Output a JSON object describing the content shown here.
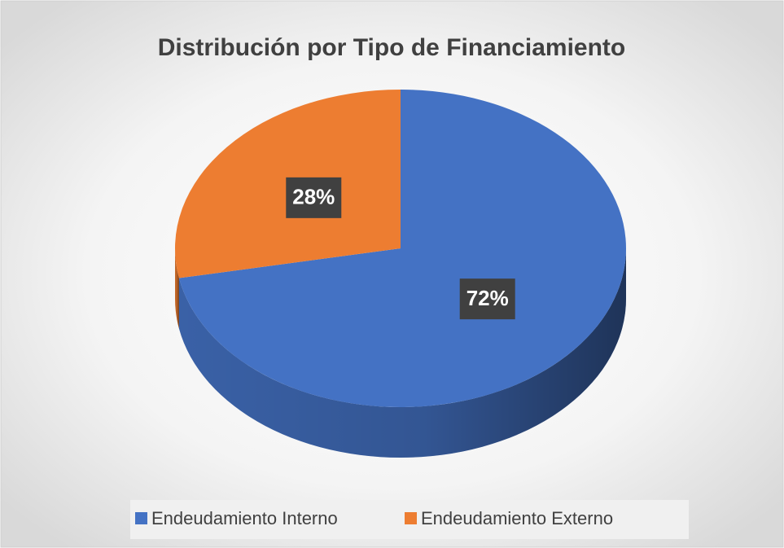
{
  "chart_data": {
    "type": "pie",
    "title": "Distribución por Tipo de Financiamiento",
    "categories": [
      "Endeudamiento Interno",
      "Endeudamiento Externo"
    ],
    "values": [
      72,
      28
    ],
    "value_labels": [
      "72%",
      "28%"
    ],
    "colors": [
      "#4472c4",
      "#ed7d31"
    ],
    "legend": "bottom"
  }
}
